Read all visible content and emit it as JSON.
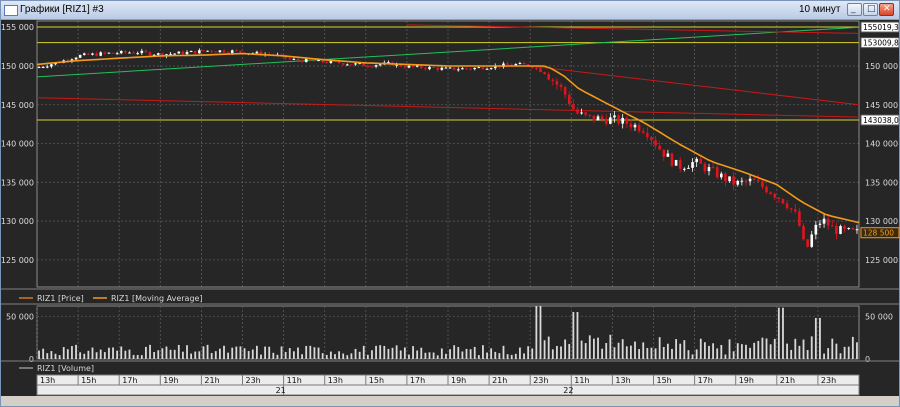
{
  "window": {
    "title": "Графики [RIZ1] #3",
    "interval": "10 минут",
    "min_glyph": "_",
    "max_glyph": "□",
    "close_glyph": "✕",
    "icons": [
      "chart-window-icon",
      "minimize-icon",
      "maximize-icon",
      "close-icon"
    ]
  },
  "colors": {
    "background": "#262626",
    "grid": "#5a5a5a",
    "up": "#ffffff",
    "down": "#e0141e",
    "ma": "#f29b1a",
    "trend_green": "#21c25a",
    "trend_red": "#c81818",
    "hline_yellow": "#d8d22a"
  },
  "legend": {
    "price": "RIZ1 [Price]",
    "ma": "RIZ1 [Moving Average]",
    "volume": "RIZ1 [Volume]"
  },
  "chart_data": [
    {
      "type": "candlestick",
      "ylim": [
        121500,
        155800
      ],
      "y_ticks": [
        155000,
        150000,
        145000,
        140000,
        135000,
        130000,
        125000
      ],
      "y_tick_labels": [
        "155 000",
        "150 000",
        "145 000",
        "140 000",
        "135 000",
        "130 000",
        "125 000"
      ],
      "price_marker_labels": [
        "155019,3",
        "153009,8",
        "143038,0",
        "128 500"
      ],
      "price_markers": [
        155019.3,
        153009.8,
        143038.0,
        128500
      ],
      "horizontal_lines": [
        155019.3,
        153009.8,
        143038.0
      ],
      "trendlines": [
        {
          "color": "green",
          "start": {
            "t": 0,
            "y": 148600
          },
          "end": {
            "t": 1,
            "y": 155000
          }
        },
        {
          "color": "red",
          "start": {
            "t": 0,
            "y": 145900
          },
          "end": {
            "t": 1,
            "y": 143400
          }
        },
        {
          "color": "red",
          "start": {
            "t": 0.6,
            "y": 150000
          },
          "end": {
            "t": 1,
            "y": 145000
          }
        },
        {
          "color": "red",
          "start": {
            "t": 0.45,
            "y": 155300
          },
          "end": {
            "t": 1,
            "y": 154200
          }
        }
      ],
      "ma_last": 129800,
      "last_price": 128500,
      "path": [
        [
          0,
          149800
        ],
        [
          0.03,
          150600
        ],
        [
          0.05,
          151300
        ],
        [
          0.08,
          151600
        ],
        [
          0.12,
          151800
        ],
        [
          0.15,
          151500
        ],
        [
          0.18,
          151700
        ],
        [
          0.21,
          152000
        ],
        [
          0.24,
          151900
        ],
        [
          0.27,
          151600
        ],
        [
          0.29,
          151400
        ],
        [
          0.31,
          150800
        ],
        [
          0.34,
          150600
        ],
        [
          0.37,
          150400
        ],
        [
          0.4,
          150100
        ],
        [
          0.43,
          150300
        ],
        [
          0.45,
          149900
        ],
        [
          0.47,
          149800
        ],
        [
          0.5,
          149600
        ],
        [
          0.53,
          149700
        ],
        [
          0.56,
          150000
        ],
        [
          0.58,
          150200
        ],
        [
          0.6,
          150100
        ],
        [
          0.62,
          149000
        ],
        [
          0.64,
          146800
        ],
        [
          0.655,
          144000
        ],
        [
          0.67,
          143300
        ],
        [
          0.7,
          143100
        ],
        [
          0.72,
          142600
        ],
        [
          0.74,
          141800
        ],
        [
          0.76,
          139000
        ],
        [
          0.78,
          137000
        ],
        [
          0.8,
          137600
        ],
        [
          0.82,
          136500
        ],
        [
          0.835,
          135600
        ],
        [
          0.85,
          134800
        ],
        [
          0.87,
          135200
        ],
        [
          0.89,
          134000
        ],
        [
          0.91,
          132500
        ],
        [
          0.925,
          130500
        ],
        [
          0.935,
          126000
        ],
        [
          0.945,
          128800
        ],
        [
          0.955,
          130200
        ],
        [
          0.97,
          128900
        ],
        [
          0.985,
          128600
        ],
        [
          1.0,
          128500
        ]
      ],
      "ma_path": [
        [
          0,
          150200
        ],
        [
          0.05,
          150700
        ],
        [
          0.1,
          151000
        ],
        [
          0.15,
          151300
        ],
        [
          0.2,
          151400
        ],
        [
          0.25,
          151600
        ],
        [
          0.3,
          151300
        ],
        [
          0.35,
          150800
        ],
        [
          0.4,
          150400
        ],
        [
          0.45,
          150200
        ],
        [
          0.5,
          150000
        ],
        [
          0.55,
          150000
        ],
        [
          0.6,
          150000
        ],
        [
          0.62,
          150000
        ],
        [
          0.64,
          148800
        ],
        [
          0.66,
          147000
        ],
        [
          0.7,
          144800
        ],
        [
          0.74,
          142600
        ],
        [
          0.78,
          140000
        ],
        [
          0.82,
          137700
        ],
        [
          0.86,
          136300
        ],
        [
          0.9,
          134700
        ],
        [
          0.93,
          132500
        ],
        [
          0.96,
          130800
        ],
        [
          1.0,
          129800
        ]
      ]
    },
    {
      "type": "bar",
      "title": "RIZ1 [Volume]",
      "ylim": [
        0,
        62000
      ],
      "y_tick_labels": [
        "50 000",
        "0"
      ],
      "y_ticks": [
        50000,
        0
      ],
      "right_tick_labels": [
        "50 000",
        "0"
      ],
      "spikes": [
        [
          0.61,
          62000
        ],
        [
          0.655,
          55000
        ],
        [
          0.905,
          60000
        ],
        [
          0.95,
          48000
        ]
      ],
      "baseline_volume": 14000,
      "max_volume": 38000
    },
    {
      "type": "time_axis",
      "hour_labels": [
        "13h",
        "15h",
        "17h",
        "19h",
        "21h",
        "23h",
        "11h",
        "13h",
        "15h",
        "17h",
        "19h",
        "21h",
        "23h",
        "11h",
        "13h",
        "15h",
        "17h",
        "19h",
        "21h",
        "23h"
      ],
      "day_labels": [
        "21",
        "22"
      ]
    }
  ]
}
